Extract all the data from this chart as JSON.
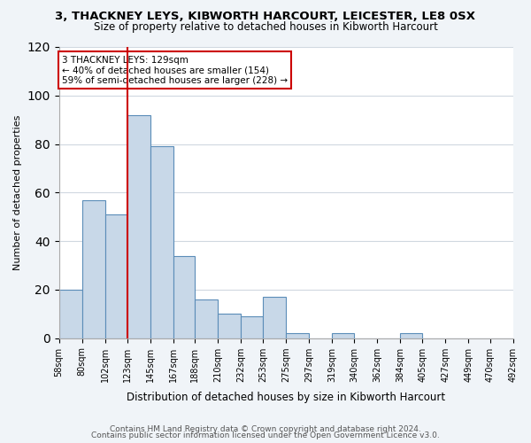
{
  "title": "3, THACKNEY LEYS, KIBWORTH HARCOURT, LEICESTER, LE8 0SX",
  "subtitle": "Size of property relative to detached houses in Kibworth Harcourt",
  "xlabel": "Distribution of detached houses by size in Kibworth Harcourt",
  "ylabel": "Number of detached properties",
  "bar_color": "#c8d8e8",
  "bar_edge_color": "#5b8db8",
  "bin_edges": [
    58,
    80,
    102,
    123,
    145,
    167,
    188,
    210,
    232,
    253,
    275,
    297,
    319,
    340,
    362,
    384,
    405,
    427,
    449,
    470,
    492
  ],
  "bin_labels": [
    "58sqm",
    "80sqm",
    "102sqm",
    "123sqm",
    "145sqm",
    "167sqm",
    "188sqm",
    "210sqm",
    "232sqm",
    "253sqm",
    "275sqm",
    "297sqm",
    "319sqm",
    "340sqm",
    "362sqm",
    "384sqm",
    "405sqm",
    "427sqm",
    "449sqm",
    "470sqm",
    "492sqm"
  ],
  "counts": [
    20,
    57,
    51,
    92,
    79,
    34,
    16,
    10,
    9,
    17,
    2,
    0,
    2,
    0,
    0,
    2,
    0,
    0,
    0,
    0
  ],
  "property_size": 129,
  "property_line_x": 123,
  "annotation_title": "3 THACKNEY LEYS: 129sqm",
  "annotation_line1": "← 40% of detached houses are smaller (154)",
  "annotation_line2": "59% of semi-detached houses are larger (228) →",
  "vline_color": "#cc0000",
  "annotation_box_edge": "#cc0000",
  "ylim": [
    0,
    120
  ],
  "yticks": [
    0,
    20,
    40,
    60,
    80,
    100,
    120
  ],
  "footer1": "Contains HM Land Registry data © Crown copyright and database right 2024.",
  "footer2": "Contains public sector information licensed under the Open Government Licence v3.0.",
  "background_color": "#f0f4f8",
  "plot_background": "#ffffff"
}
